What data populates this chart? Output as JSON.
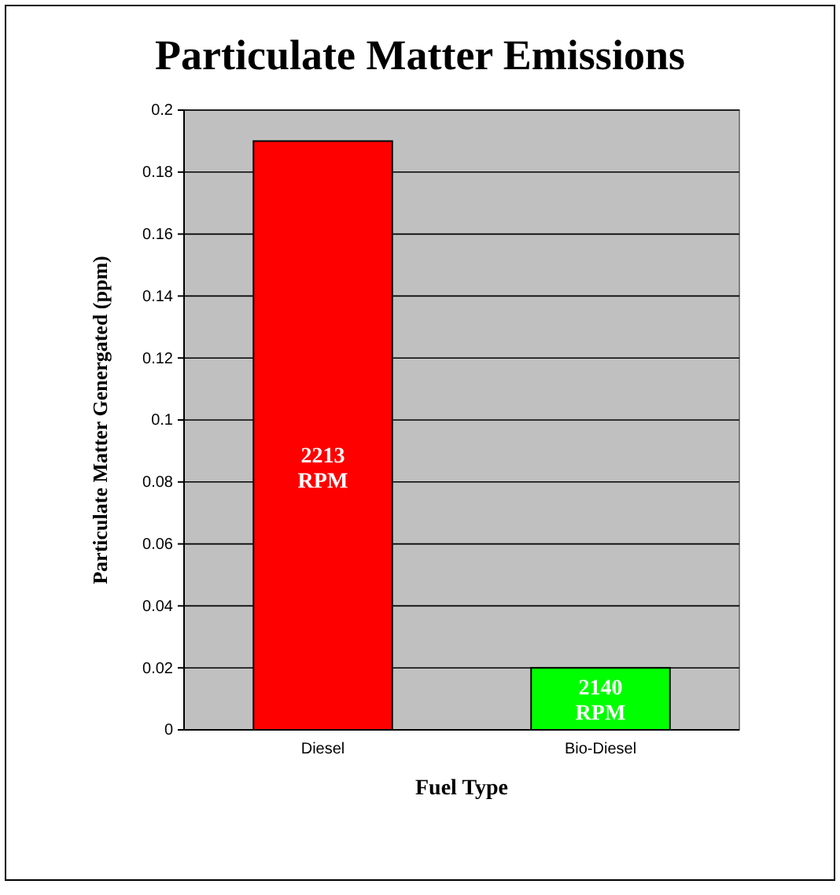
{
  "chart_data": {
    "type": "bar",
    "title": "Particulate Matter Emissions",
    "xlabel": "Fuel Type",
    "ylabel": "Particulate Matter Genergated (ppm)",
    "categories": [
      "Diesel",
      "Bio-Diesel"
    ],
    "values": [
      0.19,
      0.02
    ],
    "colors": [
      "#ff0000",
      "#00ff00"
    ],
    "ylim": [
      0,
      0.2
    ],
    "yticks": [
      0,
      0.02,
      0.04,
      0.06,
      0.08,
      0.1,
      0.12,
      0.14,
      0.16,
      0.18,
      0.2
    ],
    "grid": "y",
    "annotations": [
      "2213 RPM",
      "2140 RPM"
    ]
  }
}
